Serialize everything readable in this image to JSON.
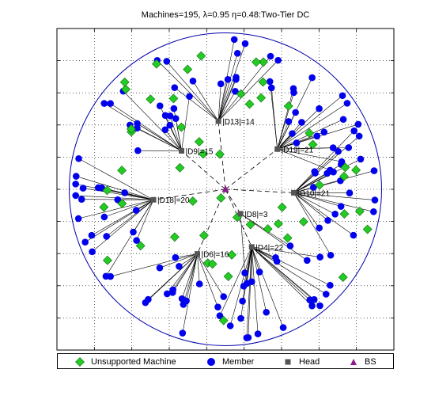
{
  "title": "Machines=195, λ=0.95 η=0.48:Two-Tier DC",
  "colors": {
    "unsupported": "#22cc22",
    "member": "#0000ee",
    "head": "#555555",
    "bs": "#8b1a8b",
    "circle": "#0000aa"
  },
  "bs": {
    "x": 0,
    "y": 0
  },
  "range": {
    "xmin": -480,
    "xmax": 480,
    "ymin": -460,
    "ymax": 460,
    "radius": 445
  },
  "clusters": [
    {
      "label": "|D13|=14",
      "x": -20,
      "y": 195,
      "size": 14
    },
    {
      "label": "|D9|=15",
      "x": -125,
      "y": 110,
      "size": 15
    },
    {
      "label": "|D19|=21",
      "x": 148,
      "y": 115,
      "size": 21
    },
    {
      "label": "|D18|=20",
      "x": -205,
      "y": -30,
      "size": 20
    },
    {
      "label": "|D10|=21",
      "x": 195,
      "y": -10,
      "size": 21
    },
    {
      "label": "|D8|=3",
      "x": 43,
      "y": -70,
      "size": 3
    },
    {
      "label": "|D6|=16",
      "x": -80,
      "y": -185,
      "size": 16
    },
    {
      "label": "|D4|=22",
      "x": 75,
      "y": -165,
      "size": 22
    }
  ],
  "counts": {
    "machines": 195,
    "unsupported": 53
  },
  "legend": [
    {
      "label": "Unsupported Machine",
      "symbol": "diamond"
    },
    {
      "label": "Member",
      "symbol": "circle"
    },
    {
      "label": "Head",
      "symbol": "square"
    },
    {
      "label": "BS",
      "symbol": "triangle"
    }
  ]
}
